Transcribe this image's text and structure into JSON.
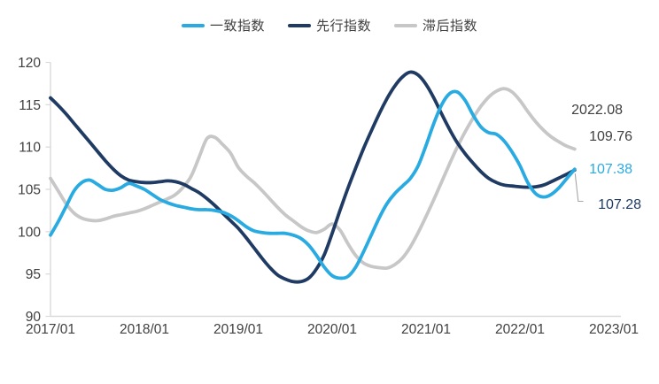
{
  "chart_data": {
    "type": "line",
    "title": "",
    "xlabel": "",
    "ylabel": "",
    "legend_position": "top-center",
    "grid": false,
    "axis_color": "#D9D9D9",
    "label_color": "#404040",
    "ylim": [
      90,
      120
    ],
    "y_ticks": [
      90,
      95,
      100,
      105,
      110,
      115,
      120
    ],
    "x_tick_labels": [
      "2017/01",
      "2018/01",
      "2019/01",
      "2020/01",
      "2021/01",
      "2022/01",
      "2023/01"
    ],
    "x_start": "2017/01",
    "x_end": "2022/08",
    "x_frequency": "monthly",
    "series": [
      {
        "name": "一致指数",
        "color": "#29ABE2",
        "end_value": 107.38,
        "values": [
          99.6,
          101.2,
          103.0,
          104.8,
          105.8,
          106.1,
          105.6,
          105.0,
          104.9,
          105.2,
          105.7,
          105.4,
          105.0,
          104.4,
          103.8,
          103.4,
          103.1,
          102.9,
          102.7,
          102.6,
          102.6,
          102.5,
          102.3,
          101.9,
          101.3,
          100.6,
          100.1,
          99.9,
          99.8,
          99.8,
          99.8,
          99.6,
          99.2,
          98.4,
          97.2,
          95.8,
          94.8,
          94.5,
          94.7,
          95.8,
          97.6,
          99.6,
          101.6,
          103.3,
          104.5,
          105.4,
          106.3,
          107.8,
          110.2,
          112.8,
          115.0,
          116.3,
          116.5,
          115.5,
          113.8,
          112.4,
          111.7,
          111.5,
          110.7,
          109.4,
          107.8,
          105.8,
          104.5,
          104.1,
          104.4,
          105.2,
          106.3,
          107.38
        ]
      },
      {
        "name": "先行指数",
        "color": "#1F3B63",
        "end_value": 107.28,
        "values": [
          115.8,
          114.9,
          113.9,
          112.8,
          111.7,
          110.6,
          109.5,
          108.4,
          107.4,
          106.6,
          106.1,
          105.9,
          105.8,
          105.8,
          105.9,
          106.0,
          105.9,
          105.6,
          105.1,
          104.6,
          103.9,
          103.1,
          102.2,
          101.3,
          100.4,
          99.3,
          98.1,
          96.9,
          95.8,
          94.9,
          94.4,
          94.1,
          94.1,
          94.5,
          95.6,
          97.3,
          99.8,
          102.5,
          105.1,
          107.5,
          109.8,
          111.9,
          113.9,
          115.7,
          117.2,
          118.3,
          118.85,
          118.5,
          117.4,
          115.8,
          113.9,
          112.1,
          110.5,
          109.2,
          108.1,
          107.1,
          106.3,
          105.8,
          105.5,
          105.4,
          105.3,
          105.25,
          105.3,
          105.5,
          105.9,
          106.35,
          106.8,
          107.28
        ]
      },
      {
        "name": "滞后指数",
        "color": "#C7C7C7",
        "end_value": 109.76,
        "values": [
          106.3,
          104.8,
          103.3,
          102.2,
          101.6,
          101.35,
          101.3,
          101.5,
          101.8,
          102.0,
          102.2,
          102.4,
          102.7,
          103.1,
          103.5,
          103.9,
          104.4,
          105.3,
          106.6,
          108.8,
          111.0,
          111.15,
          110.3,
          109.3,
          107.6,
          106.6,
          105.8,
          104.9,
          103.9,
          102.9,
          102.0,
          101.3,
          100.6,
          100.1,
          99.9,
          100.3,
          100.9,
          100.2,
          98.6,
          97.2,
          96.3,
          95.9,
          95.75,
          95.7,
          96.1,
          96.9,
          98.2,
          99.9,
          101.8,
          103.8,
          105.9,
          108.0,
          110.0,
          111.8,
          113.4,
          114.8,
          115.9,
          116.6,
          116.9,
          116.5,
          115.5,
          114.2,
          113.0,
          112.0,
          111.2,
          110.6,
          110.1,
          109.76
        ]
      }
    ],
    "annotations": [
      {
        "text": "2022.08",
        "color": "#404040"
      },
      {
        "text": "109.76",
        "color": "#404040"
      },
      {
        "text": "107.38",
        "color": "#29ABE2"
      },
      {
        "text": "107.28",
        "color": "#1F3B63"
      }
    ]
  }
}
